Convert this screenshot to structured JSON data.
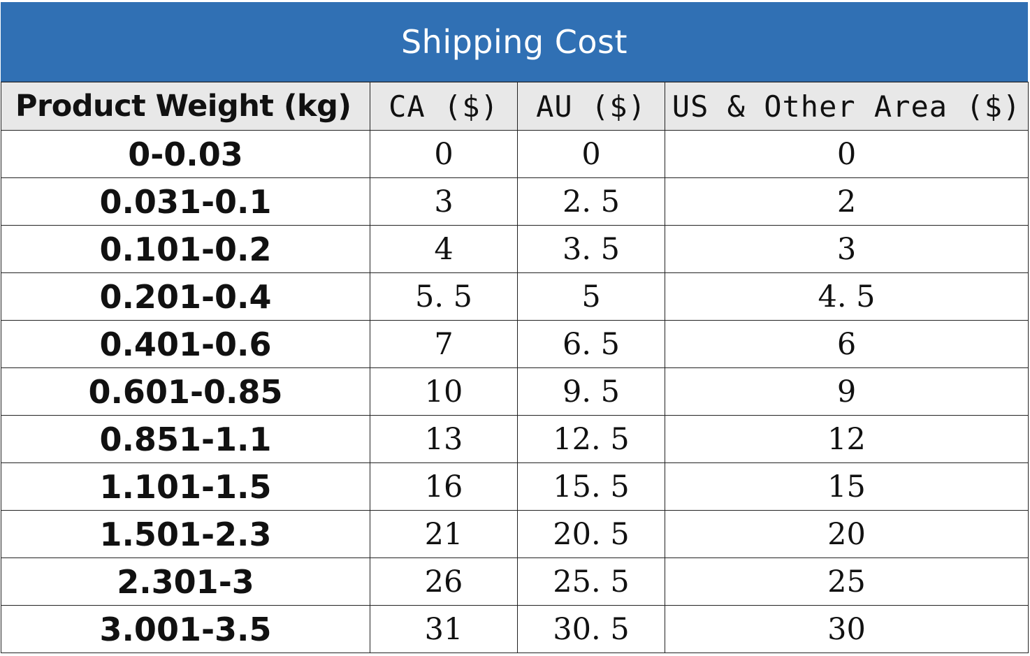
{
  "title": "Shipping Cost",
  "headers": {
    "weight": "Product Weight (kg)",
    "ca": "CA ($)",
    "au": "AU ($)",
    "us": "US & Other Area ($)"
  },
  "rows": [
    {
      "weight": "0-0.03",
      "ca": "0",
      "au": "0",
      "us": "0"
    },
    {
      "weight": "0.031-0.1",
      "ca": "3",
      "au": "2. 5",
      "us": "2"
    },
    {
      "weight": "0.101-0.2",
      "ca": "4",
      "au": "3. 5",
      "us": "3"
    },
    {
      "weight": "0.201-0.4",
      "ca": "5. 5",
      "au": "5",
      "us": "4. 5"
    },
    {
      "weight": "0.401-0.6",
      "ca": "7",
      "au": "6. 5",
      "us": "6"
    },
    {
      "weight": "0.601-0.85",
      "ca": "10",
      "au": "9. 5",
      "us": "9"
    },
    {
      "weight": "0.851-1.1",
      "ca": "13",
      "au": "12. 5",
      "us": "12"
    },
    {
      "weight": "1.101-1.5",
      "ca": "16",
      "au": "15. 5",
      "us": "15"
    },
    {
      "weight": "1.501-2.3",
      "ca": "21",
      "au": "20. 5",
      "us": "20"
    },
    {
      "weight": "2.301-3",
      "ca": "26",
      "au": "25. 5",
      "us": "25"
    },
    {
      "weight": "3.001-3.5",
      "ca": "31",
      "au": "30. 5",
      "us": "30"
    }
  ],
  "colors": {
    "title_background": "#3070b4",
    "title_text": "#ffffff",
    "header_background": "#e8e8e8",
    "border": "#222222"
  }
}
